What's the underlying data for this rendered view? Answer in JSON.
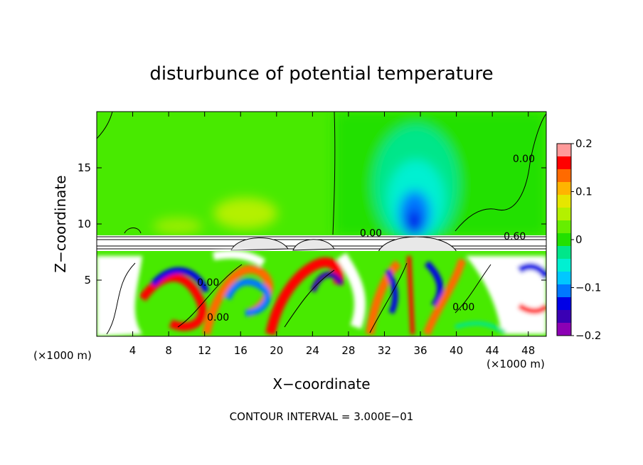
{
  "chart_data": {
    "type": "heatmap",
    "title": "disturbunce of potential temperature",
    "xlabel": "X−coordinate",
    "ylabel": "Z−coordinate",
    "x_unit_left": "(×1000 m)",
    "x_unit_right": "(×1000 m)",
    "xlim": [
      0,
      50
    ],
    "ylim": [
      0,
      20
    ],
    "x_ticks": [
      4,
      8,
      12,
      16,
      20,
      24,
      28,
      32,
      36,
      40,
      44,
      48
    ],
    "y_ticks": [
      5,
      10,
      15
    ],
    "x_tick_labels": [
      "4",
      "8",
      "12",
      "16",
      "20",
      "24",
      "28",
      "32",
      "36",
      "40",
      "44",
      "48"
    ],
    "y_tick_labels": [
      "5",
      "10",
      "15"
    ],
    "colorbar": {
      "min": -0.2,
      "max": 0.2,
      "ticks": [
        0.2,
        0.1,
        0,
        -0.1,
        -0.2
      ],
      "tick_labels": [
        "0.2",
        "0.1",
        "0",
        "−0.1",
        "−0.2"
      ],
      "colors": [
        "#ff9a9a",
        "#ff0000",
        "#ff6a00",
        "#ffb400",
        "#e6e600",
        "#b4f000",
        "#66ee00",
        "#22e000",
        "#00e68a",
        "#00f0d2",
        "#00c8ff",
        "#0078ff",
        "#0000e6",
        "#3a00b4",
        "#8c00b4"
      ]
    },
    "contour_labels": [
      {
        "text": "0.00",
        "x": 47.5,
        "y": 15.5
      },
      {
        "text": "0.00",
        "x": 30.5,
        "y": 8.9
      },
      {
        "text": "0.60",
        "x": 46.5,
        "y": 8.6
      },
      {
        "text": "0.00",
        "x": 12.4,
        "y": 4.5
      },
      {
        "text": "0.00",
        "x": 13.5,
        "y": 1.4
      },
      {
        "text": "0.00",
        "x": 40.8,
        "y": 2.3
      }
    ],
    "footer": "CONTOUR INTERVAL = 3.000E−01"
  }
}
